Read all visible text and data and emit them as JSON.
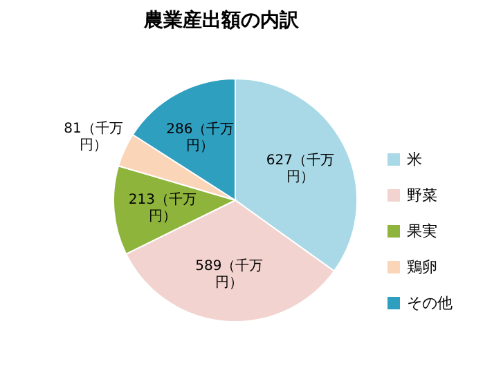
{
  "chart_data": {
    "type": "pie",
    "title": "農業産出額の内訳",
    "categories": [
      "米",
      "野菜",
      "果実",
      "鶏卵",
      "その他"
    ],
    "values": [
      627,
      589,
      213,
      81,
      286
    ],
    "colors": [
      "#a9d9e6",
      "#f2d3cf",
      "#8eb43c",
      "#fbd5b8",
      "#2f9fc0"
    ],
    "value_labels": [
      "627（千万円）",
      "589（千万円）",
      "213（千万円）",
      "81（千万円）",
      "286（千万円）"
    ],
    "legend": "right"
  }
}
